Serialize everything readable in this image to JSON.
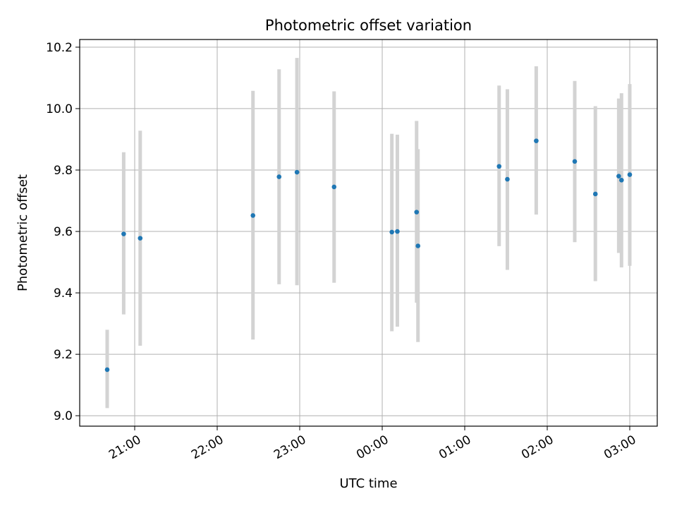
{
  "chart_data": {
    "type": "scatter",
    "title": "Photometric offset variation",
    "xlabel": "UTC time",
    "ylabel": "Photometric offset",
    "x_unit": "UTC hours relative to midnight",
    "xlim": [
      "20:20",
      "03:20"
    ],
    "ylim": [
      8.966,
      10.225
    ],
    "grid": true,
    "x_ticks": [
      {
        "label": "21:00",
        "value": "21:00"
      },
      {
        "label": "22:00",
        "value": "22:00"
      },
      {
        "label": "23:00",
        "value": "23:00"
      },
      {
        "label": "00:00",
        "value": "00:00"
      },
      {
        "label": "01:00",
        "value": "01:00"
      },
      {
        "label": "02:00",
        "value": "02:00"
      },
      {
        "label": "03:00",
        "value": "03:00"
      }
    ],
    "y_ticks": [
      {
        "label": "9.0",
        "value": 9.0
      },
      {
        "label": "9.2",
        "value": 9.2
      },
      {
        "label": "9.4",
        "value": 9.4
      },
      {
        "label": "9.6",
        "value": 9.6
      },
      {
        "label": "9.8",
        "value": 9.8
      },
      {
        "label": "10.0",
        "value": 10.0
      },
      {
        "label": "10.2",
        "value": 10.2
      }
    ],
    "marker_color": "#1f77b4",
    "errorbar_color": "#d3d3d3",
    "points": [
      {
        "x": "20:40",
        "y": 9.15,
        "y_low": 9.025,
        "y_high": 9.28
      },
      {
        "x": "20:52",
        "y": 9.592,
        "y_low": 9.33,
        "y_high": 9.858
      },
      {
        "x": "21:04",
        "y": 9.578,
        "y_low": 9.228,
        "y_high": 9.928
      },
      {
        "x": "22:26",
        "y": 9.652,
        "y_low": 9.248,
        "y_high": 10.058
      },
      {
        "x": "22:45",
        "y": 9.778,
        "y_low": 9.428,
        "y_high": 10.128
      },
      {
        "x": "22:58",
        "y": 9.793,
        "y_low": 9.425,
        "y_high": 10.165
      },
      {
        "x": "23:25",
        "y": 9.745,
        "y_low": 9.433,
        "y_high": 10.056
      },
      {
        "x": "00:07",
        "y": 9.598,
        "y_low": 9.275,
        "y_high": 9.918
      },
      {
        "x": "00:11",
        "y": 9.6,
        "y_low": 9.29,
        "y_high": 9.915
      },
      {
        "x": "00:25",
        "y": 9.663,
        "y_low": 9.368,
        "y_high": 9.96
      },
      {
        "x": "00:26",
        "y": 9.553,
        "y_low": 9.24,
        "y_high": 9.868
      },
      {
        "x": "01:25",
        "y": 9.812,
        "y_low": 9.552,
        "y_high": 10.075
      },
      {
        "x": "01:31",
        "y": 9.77,
        "y_low": 9.475,
        "y_high": 10.063
      },
      {
        "x": "01:52",
        "y": 9.895,
        "y_low": 9.655,
        "y_high": 10.138
      },
      {
        "x": "02:20",
        "y": 9.828,
        "y_low": 9.565,
        "y_high": 10.09
      },
      {
        "x": "02:35",
        "y": 9.722,
        "y_low": 9.438,
        "y_high": 10.008
      },
      {
        "x": "02:52",
        "y": 9.78,
        "y_low": 9.53,
        "y_high": 10.033
      },
      {
        "x": "02:54",
        "y": 9.767,
        "y_low": 9.483,
        "y_high": 10.05
      },
      {
        "x": "03:00",
        "y": 9.785,
        "y_low": 9.488,
        "y_high": 10.08
      }
    ]
  }
}
